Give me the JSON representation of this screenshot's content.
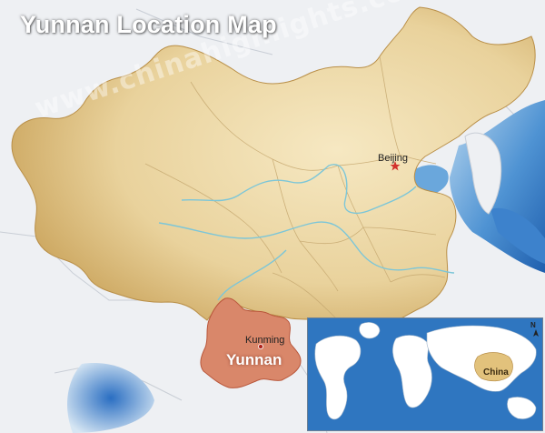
{
  "title": "Yunnan Location Map",
  "watermark": "www.chinahighlights.com",
  "labels": {
    "beijing": "Beijing",
    "kunming": "Kunming",
    "yunnan": "Yunnan",
    "china": "China"
  },
  "inset": {
    "north_marker": "N"
  },
  "icons": {
    "beijing_marker": "star",
    "kunming_marker": "dot"
  },
  "colors": {
    "background_land": "#eef0f3",
    "china_fill": "#e9d29c",
    "yunnan_fill": "#d9876a",
    "sea": "#5a9fd8",
    "river": "#7cc6d8",
    "inset_ocean": "#2f76c0",
    "inset_land": "#ffffff",
    "inset_china": "#e2c27c"
  }
}
